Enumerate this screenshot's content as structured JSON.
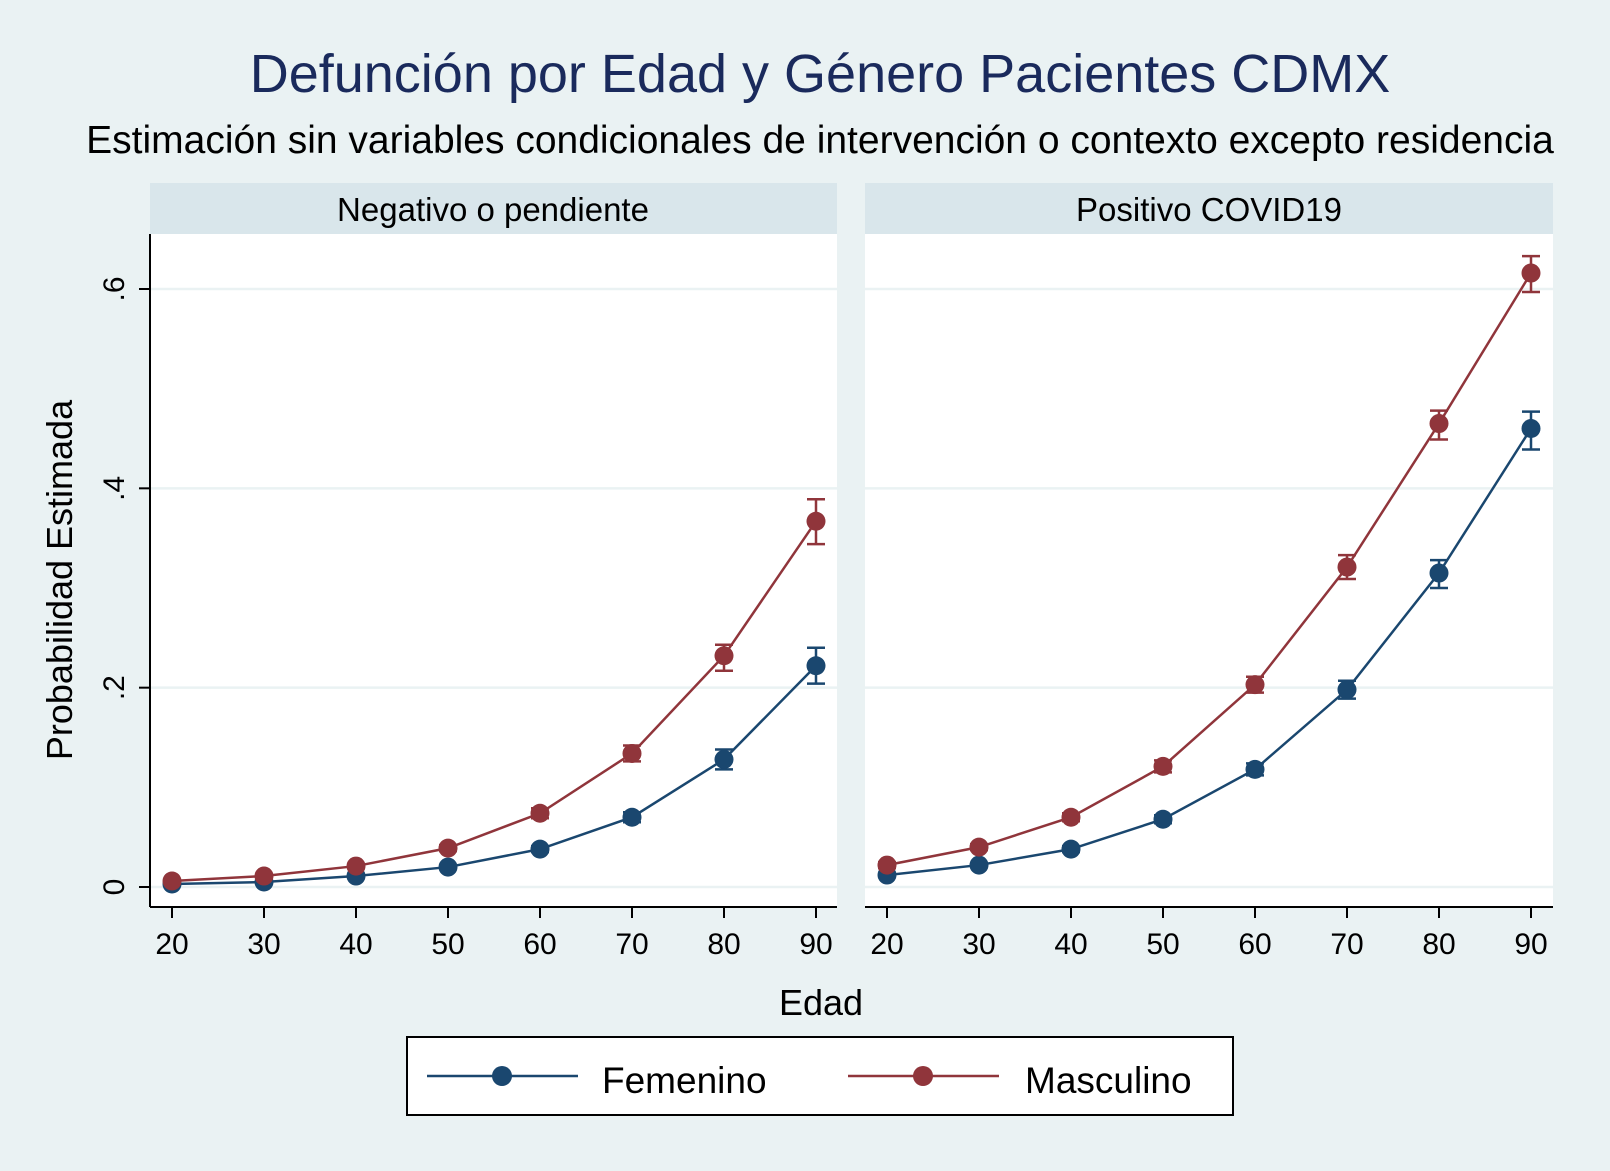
{
  "chart_data": {
    "type": "line",
    "title": "Defunción por Edad y Género Pacientes CDMX",
    "subtitle": "Estimación sin variables condicionales de intervención o contexto excepto residencia",
    "xlabel": "Edad",
    "ylabel": "Probabilidad Estimada",
    "x": [
      20,
      30,
      40,
      50,
      60,
      70,
      80,
      90
    ],
    "xlim": [
      20,
      90
    ],
    "ylim": [
      0,
      0.65
    ],
    "yticks": [
      0,
      0.2,
      0.4,
      0.6
    ],
    "ytick_labels": [
      "0",
      ".2",
      ".4",
      ".6"
    ],
    "xtick_labels": [
      "20",
      "30",
      "40",
      "50",
      "60",
      "70",
      "80",
      "90"
    ],
    "grid": true,
    "legend_position": "bottom",
    "legend": [
      "Femenino",
      "Masculino"
    ],
    "colors": {
      "Femenino": "#1a476f",
      "Masculino": "#90353b"
    },
    "panels": [
      {
        "label": "Negativo o pendiente",
        "series": [
          {
            "name": "Femenino",
            "values": [
              0.003,
              0.005,
              0.011,
              0.02,
              0.038,
              0.07,
              0.128,
              0.222
            ],
            "ci_low": [
              0.002,
              0.004,
              0.009,
              0.018,
              0.035,
              0.065,
              0.118,
              0.204
            ],
            "ci_high": [
              0.004,
              0.006,
              0.013,
              0.022,
              0.041,
              0.075,
              0.138,
              0.24
            ]
          },
          {
            "name": "Masculino",
            "values": [
              0.006,
              0.011,
              0.021,
              0.039,
              0.074,
              0.134,
              0.232,
              0.367
            ],
            "ci_low": [
              0.005,
              0.009,
              0.019,
              0.036,
              0.069,
              0.126,
              0.217,
              0.344
            ],
            "ci_high": [
              0.007,
              0.013,
              0.023,
              0.042,
              0.079,
              0.142,
              0.243,
              0.389
            ]
          }
        ]
      },
      {
        "label": "Positivo COVID19",
        "series": [
          {
            "name": "Femenino",
            "values": [
              0.012,
              0.022,
              0.038,
              0.068,
              0.118,
              0.198,
              0.315,
              0.46
            ],
            "ci_low": [
              0.01,
              0.02,
              0.035,
              0.064,
              0.112,
              0.189,
              0.3,
              0.439
            ],
            "ci_high": [
              0.014,
              0.024,
              0.041,
              0.072,
              0.124,
              0.207,
              0.328,
              0.477
            ]
          },
          {
            "name": "Masculino",
            "values": [
              0.022,
              0.04,
              0.07,
              0.121,
              0.203,
              0.321,
              0.465,
              0.616
            ],
            "ci_low": [
              0.019,
              0.037,
              0.066,
              0.115,
              0.195,
              0.309,
              0.449,
              0.597
            ],
            "ci_high": [
              0.025,
              0.043,
              0.074,
              0.127,
              0.211,
              0.333,
              0.478,
              0.633
            ]
          }
        ]
      }
    ]
  }
}
